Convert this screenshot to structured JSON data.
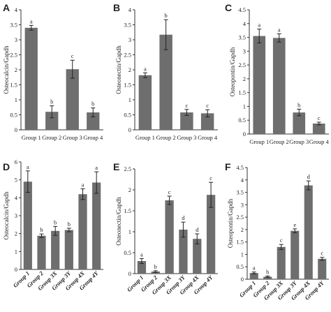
{
  "colors": {
    "bar": "#6e6e6e",
    "axis": "#333333",
    "text": "#222222"
  },
  "chart_data": [
    {
      "panel": "A",
      "type": "bar",
      "ylabel": "Osteocalcin/Gapdh",
      "categories": [
        "Group 1",
        "Group 2",
        "Group 3",
        "Group 4"
      ],
      "values": [
        3.4,
        0.6,
        2.02,
        0.58
      ],
      "errors": [
        0.08,
        0.2,
        0.3,
        0.15
      ],
      "sig_letters": [
        "a",
        "b",
        "c",
        "b"
      ],
      "ylim": [
        0,
        4
      ],
      "ticks": [
        "0",
        "0.5",
        "1",
        "1.5",
        "2",
        "2.5",
        "3",
        "3.5",
        "4"
      ]
    },
    {
      "panel": "B",
      "type": "bar",
      "ylabel": "Osteonectin/Gapdh",
      "categories": [
        "Group 1",
        "Group 2",
        "Group 3",
        "Group 4"
      ],
      "values": [
        1.82,
        3.17,
        0.58,
        0.55
      ],
      "errors": [
        0.08,
        0.5,
        0.1,
        0.12
      ],
      "sig_letters": [
        "a",
        "b",
        "c",
        "c"
      ],
      "ylim": [
        0,
        4
      ],
      "ticks": [
        "0",
        "0.5",
        "1",
        "1.5",
        "2",
        "2.5",
        "3",
        "3.5",
        "4"
      ]
    },
    {
      "panel": "C",
      "type": "bar",
      "ylabel": "Osteopontin/Gapdh",
      "categories": [
        "Group 1",
        "Group 2",
        "Group 3",
        "Group 4"
      ],
      "values": [
        3.55,
        3.48,
        0.78,
        0.38
      ],
      "errors": [
        0.25,
        0.15,
        0.12,
        0.05
      ],
      "sig_letters": [
        "a",
        "a",
        "b",
        "c"
      ],
      "ylim": [
        0,
        4.5
      ],
      "ticks": [
        "0",
        "0.5",
        "1",
        "1.5",
        "2",
        "2.5",
        "3",
        "3.5",
        "4",
        "4.5"
      ]
    },
    {
      "panel": "D",
      "type": "bar",
      "ylabel": "Osteocalcin/Gapdh",
      "categories": [
        "Group 1",
        "Group 2",
        "Group 3X",
        "Group 3Y",
        "Group 4X",
        "Group 4Y"
      ],
      "values": [
        4.9,
        1.88,
        2.15,
        2.2,
        4.2,
        4.85
      ],
      "errors": [
        0.6,
        0.1,
        0.25,
        0.1,
        0.3,
        0.6
      ],
      "sig_letters": [
        "a",
        "b",
        "b",
        "b",
        "a",
        "a"
      ],
      "ylim": [
        0,
        6
      ],
      "ticks": [
        "0",
        "1",
        "2",
        "3",
        "4",
        "5",
        "6"
      ]
    },
    {
      "panel": "E",
      "type": "bar",
      "ylabel": "Osteonectin/Gapdh",
      "categories": [
        "Group 1",
        "Group 2",
        "Group 3X",
        "Group 3Y",
        "Group 4X",
        "Group 4Y"
      ],
      "values": [
        0.3,
        0.05,
        1.75,
        1.05,
        0.83,
        1.88
      ],
      "errors": [
        0.06,
        0.02,
        0.1,
        0.18,
        0.12,
        0.3
      ],
      "sig_letters": [
        "a",
        "b",
        "c",
        "d",
        "d",
        "c"
      ],
      "ylim": [
        0,
        2.5
      ],
      "ticks": [
        "0",
        "0.5",
        "1",
        "1.5",
        "2",
        "2.5"
      ]
    },
    {
      "panel": "F",
      "type": "bar",
      "ylabel": "Osteopontin/Gapdh",
      "categories": [
        "Group 1",
        "Group 2",
        "Group 3X",
        "Group 3Y",
        "Group 4X",
        "Group 4Y"
      ],
      "values": [
        0.25,
        0.1,
        1.3,
        1.95,
        3.78,
        0.82
      ],
      "errors": [
        0.04,
        0.03,
        0.1,
        0.08,
        0.18,
        0.06
      ],
      "sig_letters": [
        "a",
        "b",
        "c",
        "e",
        "d",
        "c"
      ],
      "ylim": [
        0,
        4.5
      ],
      "ticks": [
        "0",
        "0.5",
        "1",
        "1.5",
        "2",
        "2.5",
        "3",
        "3.5",
        "4",
        "4.5"
      ]
    }
  ]
}
